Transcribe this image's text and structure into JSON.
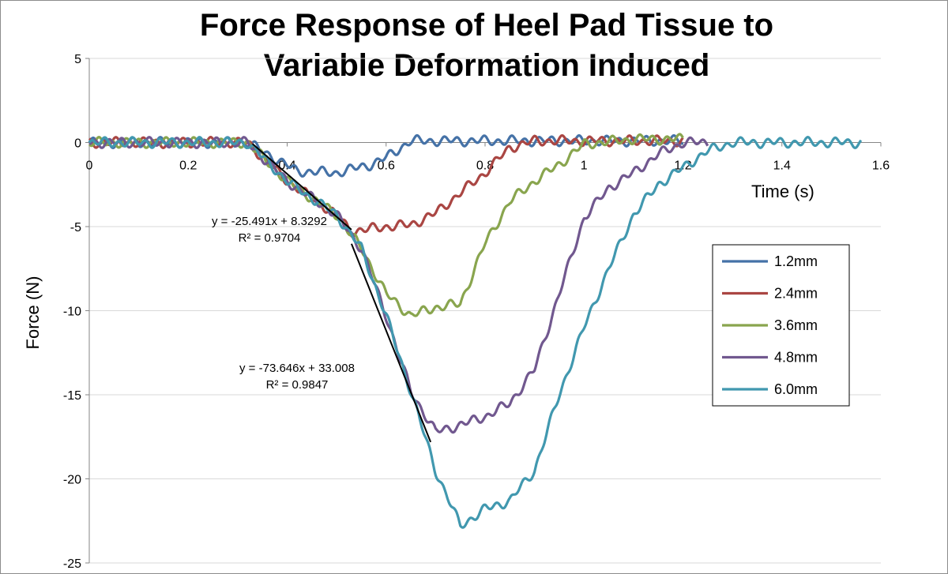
{
  "chart_data": {
    "type": "line",
    "title_lines": [
      "Force Response of Heel Pad Tissue  to",
      "Variable Deformation Induced"
    ],
    "xlabel": "Time (s)",
    "ylabel": "Force (N)",
    "xlim": [
      0,
      1.6
    ],
    "ylim": [
      -25,
      5
    ],
    "xticks": [
      0,
      0.2,
      0.4,
      0.6,
      0.8,
      1,
      1.2,
      1.4,
      1.6
    ],
    "xtick_labels": [
      "0",
      "0.2",
      "0.4",
      "0.6",
      "0.8",
      "1",
      "1.2",
      "1.4",
      "1.6"
    ],
    "yticks": [
      5,
      0,
      -5,
      -10,
      -15,
      -20,
      -25
    ],
    "ytick_labels": [
      "5",
      "0",
      "-5",
      "-10",
      "-15",
      "-20",
      "-25"
    ],
    "grid": true,
    "legend_position": "right",
    "oscillation_amplitude": 0.25,
    "series": [
      {
        "name": "1.2mm",
        "color": "#4572A7",
        "x": [
          0,
          0.32,
          0.42,
          0.5,
          0.57,
          0.6,
          0.65,
          0.8,
          1.2
        ],
        "y": [
          0,
          0,
          -1.7,
          -1.8,
          -1.3,
          -0.9,
          0.1,
          0.1,
          0.1
        ]
      },
      {
        "name": "2.4mm",
        "color": "#AA4643",
        "x": [
          0,
          0.32,
          0.4,
          0.5,
          0.53,
          0.6,
          0.65,
          0.7,
          0.75,
          0.8,
          0.85,
          0.9,
          1.2
        ],
        "y": [
          0,
          0,
          -2.3,
          -4.3,
          -5.3,
          -5.0,
          -4.9,
          -4.2,
          -3.0,
          -1.8,
          -0.3,
          0.1,
          0.1
        ]
      },
      {
        "name": "3.6mm",
        "color": "#89A54E",
        "x": [
          0,
          0.32,
          0.4,
          0.5,
          0.55,
          0.6,
          0.65,
          0.7,
          0.75,
          0.8,
          0.85,
          0.9,
          0.95,
          1.0,
          1.1,
          1.2
        ],
        "y": [
          0,
          0,
          -2.3,
          -4.3,
          -6.3,
          -9.0,
          -10.3,
          -9.8,
          -9.6,
          -6.0,
          -3.5,
          -2.3,
          -1.3,
          -0.1,
          0.2,
          0.2
        ]
      },
      {
        "name": "4.8mm",
        "color": "#71588F",
        "x": [
          0,
          0.32,
          0.4,
          0.5,
          0.55,
          0.6,
          0.65,
          0.7,
          0.75,
          0.8,
          0.85,
          0.9,
          0.95,
          1.0,
          1.05,
          1.1,
          1.15,
          1.2,
          1.25
        ],
        "y": [
          0,
          0,
          -2.3,
          -4.3,
          -6.3,
          -10.3,
          -14.8,
          -17.2,
          -16.8,
          -16.3,
          -15.5,
          -13.5,
          -9.0,
          -4.5,
          -2.7,
          -1.8,
          -0.7,
          0,
          0
        ]
      },
      {
        "name": "6.0mm",
        "color": "#4198AF",
        "x": [
          0,
          0.32,
          0.4,
          0.5,
          0.55,
          0.6,
          0.65,
          0.7,
          0.75,
          0.8,
          0.85,
          0.9,
          0.95,
          1.0,
          1.05,
          1.1,
          1.15,
          1.2,
          1.25,
          1.3,
          1.4,
          1.56
        ],
        "y": [
          0,
          0,
          -2.3,
          -4.3,
          -6.3,
          -10.3,
          -14.8,
          -19.5,
          -22.8,
          -21.8,
          -21.3,
          -19.5,
          -15.0,
          -11.0,
          -7.5,
          -4.3,
          -2.5,
          -1.5,
          -0.5,
          0,
          0,
          0
        ]
      }
    ],
    "trendlines": [
      {
        "x": [
          0.33,
          0.53
        ],
        "y": [
          -0.083,
          -5.18
        ],
        "label_lines": [
          "y = -25.491x + 8.3292",
          "R² = 0.9704"
        ]
      },
      {
        "x": [
          0.53,
          0.69
        ],
        "y": [
          -6.02,
          -17.81
        ],
        "label_lines": [
          "y = -73.646x + 33.008",
          "R² = 0.9847"
        ]
      }
    ]
  }
}
